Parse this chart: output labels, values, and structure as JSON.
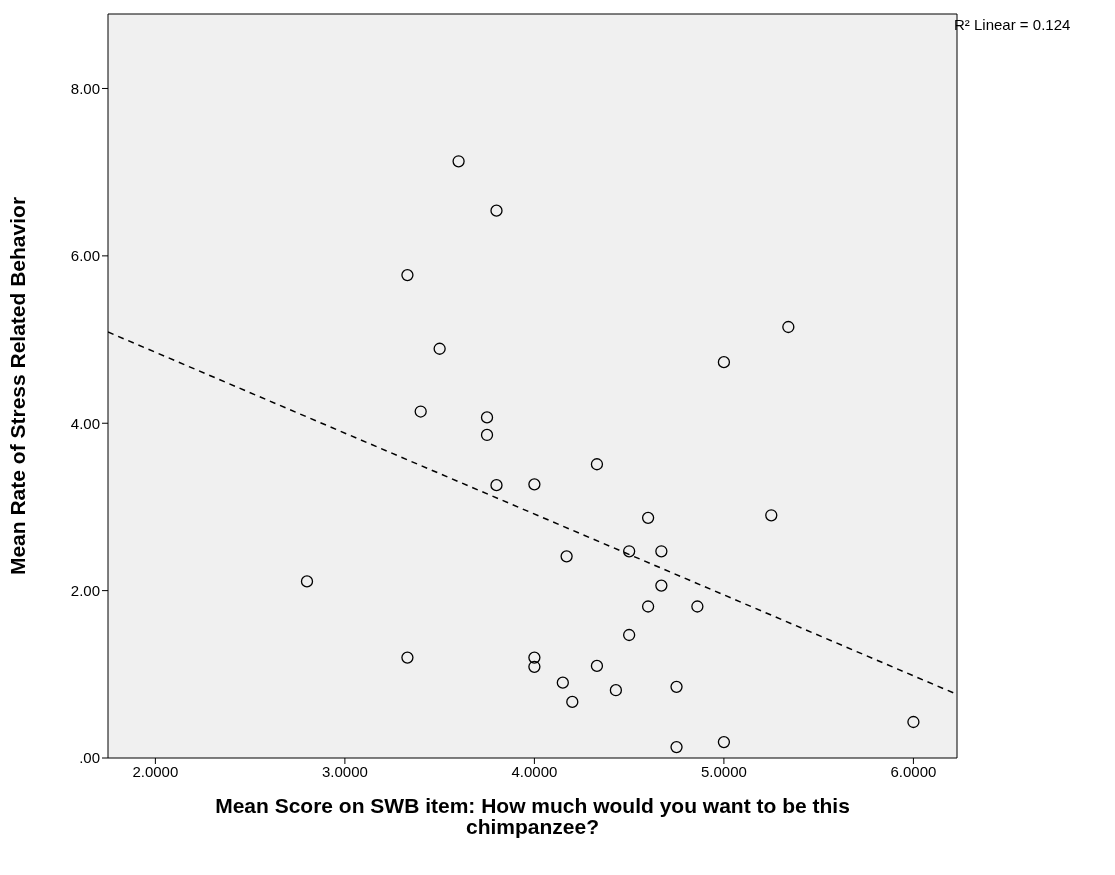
{
  "chart_data": {
    "type": "scatter",
    "xlabel": "Mean Score on SWB item: How much would you want to be this chimpanzee?",
    "ylabel": "Mean Rate of Stress Related Behavior",
    "annotations": [
      "R² Linear = 0.124"
    ],
    "xlim": [
      1.75,
      6.23
    ],
    "ylim": [
      0,
      8.89
    ],
    "xticks": [
      {
        "value": 2,
        "label": "2.0000"
      },
      {
        "value": 3,
        "label": "3.0000"
      },
      {
        "value": 4,
        "label": "4.0000"
      },
      {
        "value": 5,
        "label": "5.0000"
      },
      {
        "value": 6,
        "label": "6.0000"
      }
    ],
    "yticks": [
      {
        "value": 0,
        "label": ".00"
      },
      {
        "value": 2,
        "label": "2.00"
      },
      {
        "value": 4,
        "label": "4.00"
      },
      {
        "value": 6,
        "label": "6.00"
      },
      {
        "value": 8,
        "label": "8.00"
      }
    ],
    "marker": "circle",
    "series": [
      {
        "color": "#000000",
        "x": [
          3.6,
          3.8,
          3.33,
          3.5,
          3.4,
          3.75,
          3.75,
          3.8,
          4.0,
          4.33,
          5.34,
          5.0,
          4.6,
          5.25,
          4.5,
          4.67,
          4.17,
          4.67,
          4.6,
          4.86,
          4.5,
          2.8,
          3.33,
          4.0,
          4.0,
          4.33,
          4.15,
          4.43,
          4.2,
          4.75,
          4.75,
          5.0,
          6.0
        ],
        "values": [
          7.13,
          6.54,
          5.77,
          4.89,
          4.14,
          4.07,
          3.86,
          3.26,
          3.27,
          3.51,
          5.15,
          4.73,
          2.87,
          2.9,
          2.47,
          2.47,
          2.41,
          2.06,
          1.81,
          1.81,
          1.47,
          2.11,
          1.2,
          1.2,
          1.09,
          1.1,
          0.9,
          0.81,
          0.67,
          0.85,
          0.13,
          0.19,
          0.43
        ]
      },
      {
        "type": "line",
        "color": "#000000",
        "line_style": "dashed",
        "marker": "none",
        "x": [
          1.75,
          6.23
        ],
        "values": [
          5.09,
          0.76
        ]
      }
    ]
  }
}
